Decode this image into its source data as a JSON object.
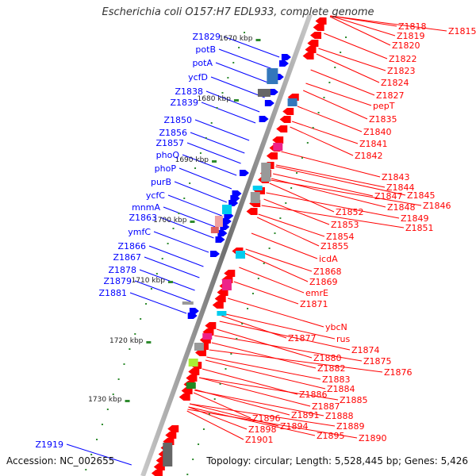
{
  "title": "Escherichia coli O157:H7 EDL933, complete genome",
  "accession": "Accession: NC_002655",
  "summary": "Topology: circular; Length: 5,528,445 bp; Genes: 5,426",
  "colors": {
    "forward_label": "#0000ff",
    "reverse_label": "#ff0000",
    "backbone": "#808080",
    "tick": "#2e8b2e",
    "forward_gene": "#0000ff",
    "reverse_gene": "#ff0000",
    "hit_cyan": "#00ccee",
    "hit_blue": "#3377bb",
    "hit_magenta": "#ee2288",
    "hit_gray": "#999999",
    "hit_lime": "#aaee33"
  },
  "kbp_ticks": [
    "1670 kbp",
    "1680 kbp",
    "1690 kbp",
    "1700 kbp",
    "1710 kbp",
    "1720 kbp",
    "1730 kbp"
  ],
  "forward_genes": [
    "Z1829",
    "potB",
    "potA",
    "ycfD",
    "Z1838",
    "Z1839",
    "Z1850",
    "Z1856",
    "Z1857",
    "phoQ",
    "phoP",
    "purB",
    "ycfC",
    "mnmA",
    "Z1863",
    "ymfC",
    "Z1866",
    "Z1867",
    "Z1878",
    "Z1879",
    "Z1881",
    "Z1919"
  ],
  "reverse_genes": [
    "Z1815",
    "Z1818",
    "Z1819",
    "Z1820",
    "Z1822",
    "Z1823",
    "Z1824",
    "Z1827",
    "pepT",
    "Z1835",
    "Z1840",
    "Z1841",
    "Z1842",
    "Z1843",
    "Z1844",
    "Z1845",
    "Z1846",
    "Z1847",
    "Z1848",
    "Z1849",
    "Z1851",
    "Z1852",
    "Z1853",
    "Z1854",
    "Z1855",
    "icdA",
    "Z1868",
    "Z1869",
    "emrE",
    "Z1871",
    "ybcN",
    "rus",
    "Z1877",
    "Z1874",
    "Z1875",
    "Z1876",
    "Z1880",
    "Z1882",
    "Z1883",
    "Z1884",
    "Z1886",
    "Z1885",
    "Z1887",
    "Z1888",
    "Z1889",
    "Z1890",
    "Z1891",
    "Z1894",
    "Z1895",
    "Z1896",
    "Z1898",
    "Z1901"
  ]
}
